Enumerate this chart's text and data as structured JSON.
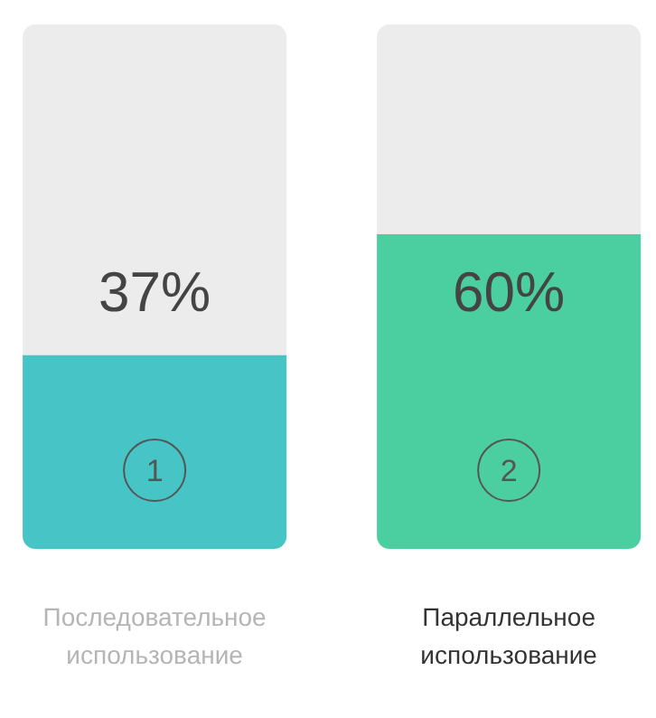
{
  "chart_data": {
    "type": "bar",
    "stacked": true,
    "categories": [
      "Последовательное использование",
      "Параллельное использование"
    ],
    "series": [
      {
        "colors": [
          "#47c4c6",
          "#4ccfa0"
        ],
        "values": [
          37,
          60
        ],
        "value_labels": [
          "37%",
          "60%"
        ]
      },
      {
        "color": "#ececec",
        "values": [
          63,
          40
        ]
      }
    ],
    "ylim": [
      0,
      100
    ],
    "tick_labels": false,
    "grid": false,
    "annotations": [
      "1",
      "2"
    ]
  }
}
